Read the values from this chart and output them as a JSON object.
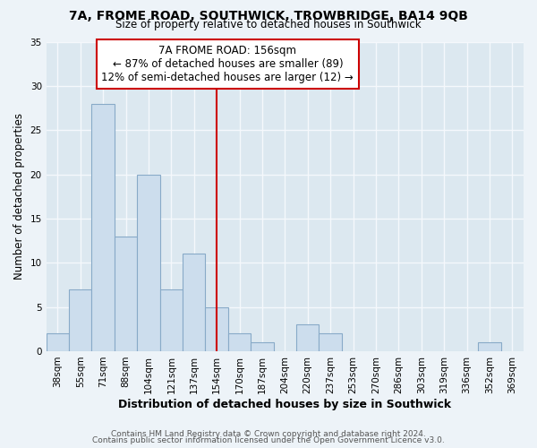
{
  "title1": "7A, FROME ROAD, SOUTHWICK, TROWBRIDGE, BA14 9QB",
  "title2": "Size of property relative to detached houses in Southwick",
  "xlabel": "Distribution of detached houses by size in Southwick",
  "ylabel": "Number of detached properties",
  "footer1": "Contains HM Land Registry data © Crown copyright and database right 2024.",
  "footer2": "Contains public sector information licensed under the Open Government Licence v3.0.",
  "bin_labels": [
    "38sqm",
    "55sqm",
    "71sqm",
    "88sqm",
    "104sqm",
    "121sqm",
    "137sqm",
    "154sqm",
    "170sqm",
    "187sqm",
    "204sqm",
    "220sqm",
    "237sqm",
    "253sqm",
    "270sqm",
    "286sqm",
    "303sqm",
    "319sqm",
    "336sqm",
    "352sqm",
    "369sqm"
  ],
  "bar_heights": [
    2,
    7,
    28,
    13,
    20,
    7,
    11,
    5,
    2,
    1,
    0,
    3,
    2,
    0,
    0,
    0,
    0,
    0,
    0,
    1,
    0
  ],
  "bar_color": "#ccdded",
  "bar_edgecolor": "#88aac8",
  "vline_x": 7.5,
  "vline_color": "#cc0000",
  "ylim": [
    0,
    35
  ],
  "yticks": [
    0,
    5,
    10,
    15,
    20,
    25,
    30,
    35
  ],
  "annotation_title": "7A FROME ROAD: 156sqm",
  "annotation_line1": "← 87% of detached houses are smaller (89)",
  "annotation_line2": "12% of semi-detached houses are larger (12) →",
  "annotation_box_color": "#ffffff",
  "annotation_box_edgecolor": "#cc0000",
  "plot_bg_color": "#dce8f0",
  "fig_bg_color": "#edf3f8",
  "grid_color": "#f5f8fc",
  "title_fontsize": 10,
  "subtitle_fontsize": 8.5,
  "ylabel_fontsize": 8.5,
  "xlabel_fontsize": 9,
  "tick_fontsize": 7.5,
  "annot_fontsize": 8.5,
  "footer_fontsize": 6.5
}
